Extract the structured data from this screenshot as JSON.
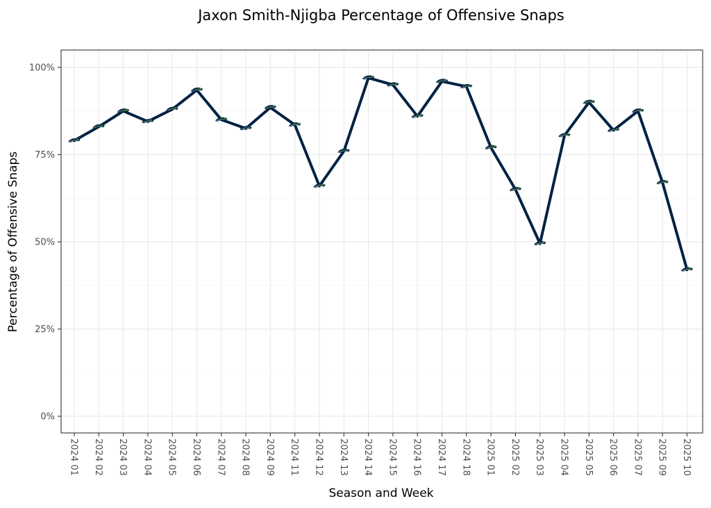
{
  "chart_data": {
    "type": "line",
    "title": "Jaxon Smith-Njigba Percentage of Offensive Snaps",
    "xlabel": "Season and Week",
    "ylabel": "Percentage of Offensive Snaps",
    "ylim": [
      0,
      100
    ],
    "yticks": [
      0,
      25,
      50,
      75,
      100
    ],
    "ytick_labels": [
      "0%",
      "25%",
      "50%",
      "75%",
      "100%"
    ],
    "grid": true,
    "categories": [
      "2024 01",
      "2024 02",
      "2024 03",
      "2024 04",
      "2024 05",
      "2024 06",
      "2024 07",
      "2024 08",
      "2024 09",
      "2024 11",
      "2024 12",
      "2024 13",
      "2024 14",
      "2024 15",
      "2024 16",
      "2024 17",
      "2024 18",
      "2025 01",
      "2025 02",
      "2025 03",
      "2025 04",
      "2025 05",
      "2025 06",
      "2025 07",
      "2025 09",
      "2025 10"
    ],
    "series": [
      {
        "name": "Jaxon Smith-Njigba",
        "color": "#002244",
        "marker": "seahawks-logo-icon",
        "values": [
          79,
          83,
          87.5,
          84.5,
          88,
          93.5,
          85,
          82.5,
          88.5,
          83.5,
          66,
          76,
          97,
          95,
          86,
          96,
          94.5,
          77,
          65,
          49.5,
          80.5,
          90,
          82,
          87.5,
          67,
          42
        ]
      }
    ]
  },
  "colors": {
    "line": "#002244",
    "logo_navy": "#002244",
    "logo_green": "#69BE28",
    "logo_gray": "#A5ACAF"
  }
}
